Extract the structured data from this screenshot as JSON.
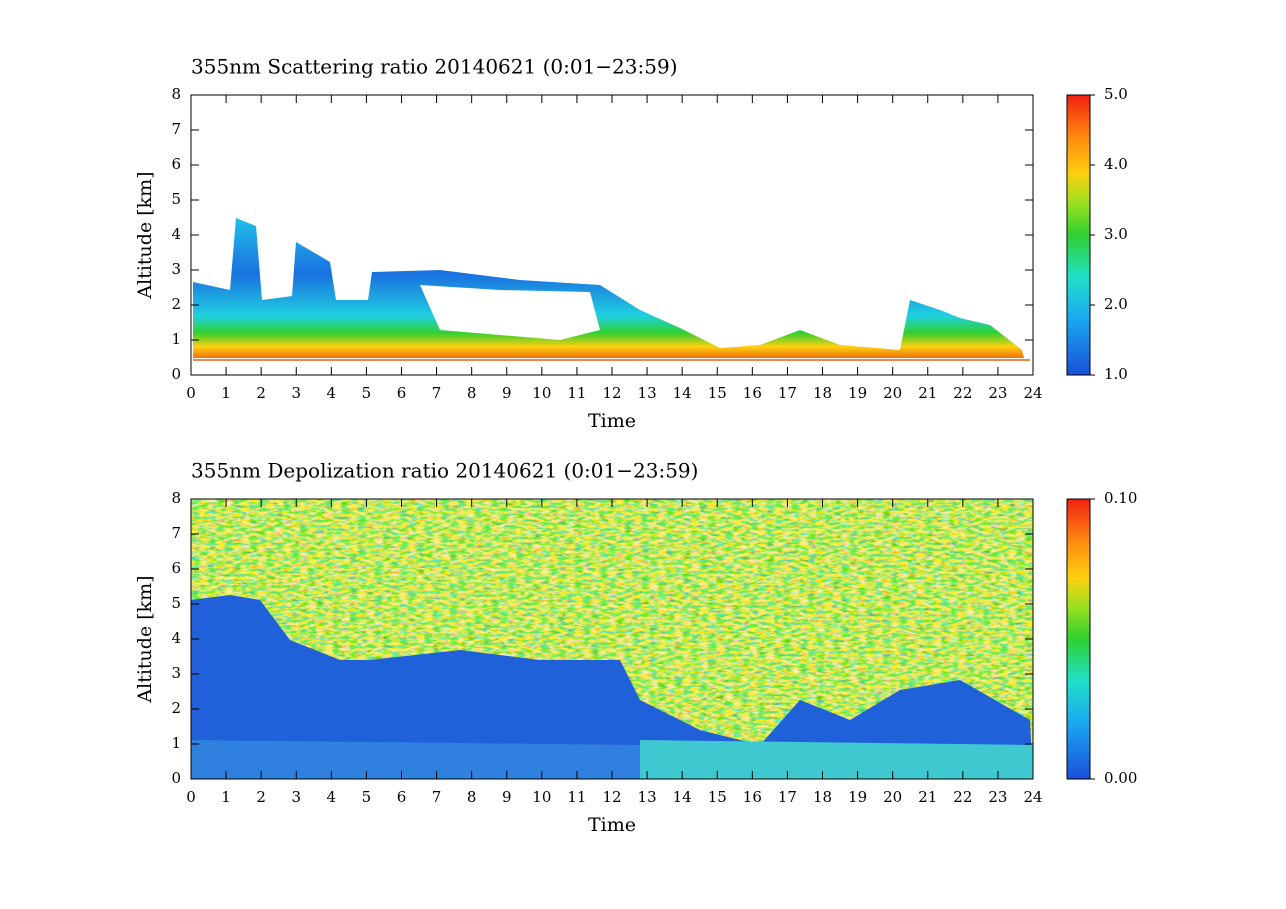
{
  "chart_data": [
    {
      "type": "heatmap",
      "title": "355nm Scattering ratio  20140621 (0:01−23:59)",
      "xlabel": "Time",
      "ylabel": "Altitude [km]",
      "xlim": [
        0,
        24
      ],
      "xticks": [
        0,
        1,
        2,
        3,
        4,
        5,
        6,
        7,
        8,
        9,
        10,
        11,
        12,
        13,
        14,
        15,
        16,
        17,
        18,
        19,
        20,
        21,
        22,
        23,
        24
      ],
      "ylim": [
        0,
        8
      ],
      "yticks": [
        0,
        1,
        2,
        3,
        4,
        5,
        6,
        7,
        8
      ],
      "colorbar": {
        "lim": [
          1,
          5
        ],
        "ticks": [
          {
            "value": 1,
            "label": "1.0"
          },
          {
            "value": 2,
            "label": "2.0"
          },
          {
            "value": 3,
            "label": "3.0"
          },
          {
            "value": 4,
            "label": "4.0"
          },
          {
            "value": 5,
            "label": "5.0"
          }
        ]
      }
    },
    {
      "type": "heatmap",
      "title": "355nm Depolization ratio  20140621 (0:01−23:59)",
      "xlabel": "Time",
      "ylabel": "Altitude [km]",
      "xlim": [
        0,
        24
      ],
      "xticks": [
        0,
        1,
        2,
        3,
        4,
        5,
        6,
        7,
        8,
        9,
        10,
        11,
        12,
        13,
        14,
        15,
        16,
        17,
        18,
        19,
        20,
        21,
        22,
        23,
        24
      ],
      "ylim": [
        0,
        8
      ],
      "yticks": [
        0,
        1,
        2,
        3,
        4,
        5,
        6,
        7,
        8
      ],
      "colorbar": {
        "lim": [
          0,
          0.1
        ],
        "ticks": [
          {
            "value": 0,
            "label": "0.00"
          },
          {
            "value": 0.1,
            "label": "0.10"
          }
        ]
      }
    }
  ]
}
